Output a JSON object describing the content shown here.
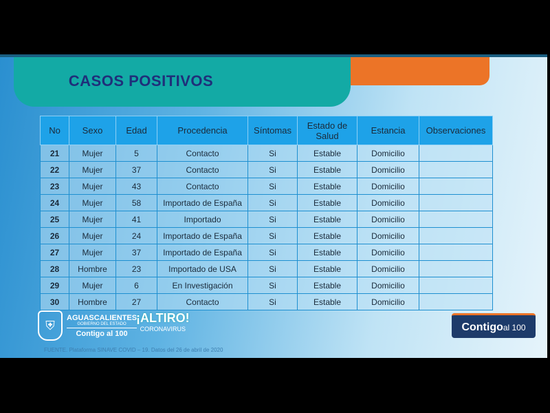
{
  "title": "CASOS POSITIVOS",
  "table": {
    "headers": [
      "No",
      "Sexo",
      "Edad",
      "Procedencia",
      "Síntomas",
      "Estado de Salud",
      "Estancia",
      "Observaciones"
    ],
    "rows": [
      [
        "21",
        "Mujer",
        "5",
        "Contacto",
        "Si",
        "Estable",
        "Domicilio",
        ""
      ],
      [
        "22",
        "Mujer",
        "37",
        "Contacto",
        "Si",
        "Estable",
        "Domicilio",
        ""
      ],
      [
        "23",
        "Mujer",
        "43",
        "Contacto",
        "Si",
        "Estable",
        "Domicilio",
        ""
      ],
      [
        "24",
        "Mujer",
        "58",
        "Importado de España",
        "Si",
        "Estable",
        "Domicilio",
        ""
      ],
      [
        "25",
        "Mujer",
        "41",
        "Importado",
        "Si",
        "Estable",
        "Domicilio",
        ""
      ],
      [
        "26",
        "Mujer",
        "24",
        "Importado de España",
        "Si",
        "Estable",
        "Domicilio",
        ""
      ],
      [
        "27",
        "Mujer",
        "37",
        "Importado de España",
        "Si",
        "Estable",
        "Domicilio",
        ""
      ],
      [
        "28",
        "Hombre",
        "23",
        "Importado de USA",
        "Si",
        "Estable",
        "Domicilio",
        ""
      ],
      [
        "29",
        "Mujer",
        "6",
        "En Investigación",
        "Si",
        "Estable",
        "Domicilio",
        ""
      ],
      [
        "30",
        "Hombre",
        "27",
        "Contacto",
        "Si",
        "Estable",
        "Domicilio",
        ""
      ]
    ]
  },
  "logos": {
    "gov_name": "AGUASCALIENTES",
    "gov_sub": "GOBIERNO DEL ESTADO",
    "gov_slogan": "Contigo al 100",
    "altiro": "¡ALTIRO!",
    "altiro_sub": "CORONAVIRUS",
    "contigo_main": "Contigo",
    "contigo_tail": "al 100"
  },
  "footer": "FUENTE. Plataforma SINAVE COVID – 19. Datos del 26 de abril de 2020",
  "colors": {
    "teal": "#13aaa5",
    "orange": "#ec7427",
    "title": "#1f2f7a",
    "header": "#1ea2e8"
  }
}
